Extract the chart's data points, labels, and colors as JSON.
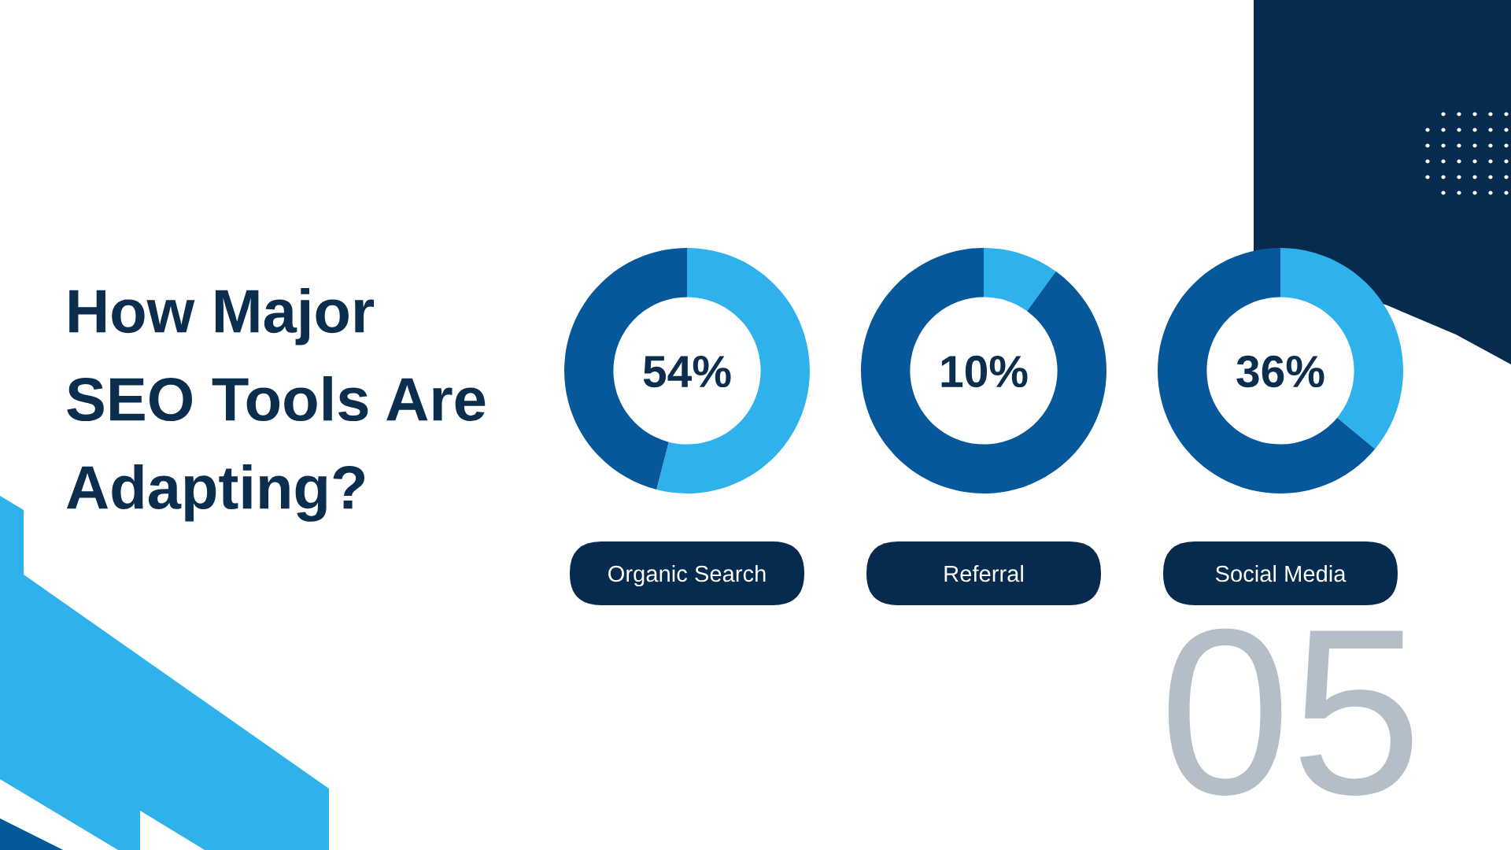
{
  "chart_data": [
    {
      "type": "other",
      "title": "How Major SEO Tools Are Adapting?",
      "annotations": [
        "05"
      ]
    },
    {
      "type": "donut",
      "xlabel": "Organic Search",
      "categories": [
        null,
        null
      ],
      "values": [
        54,
        46
      ],
      "colors": [
        "#2fb2eb",
        "#06589b"
      ],
      "annotations": [
        "54%"
      ]
    },
    {
      "type": "donut",
      "xlabel": "Referral",
      "categories": [
        null,
        null
      ],
      "values": [
        10,
        90
      ],
      "colors": [
        "#2fb2eb",
        "#06589b"
      ],
      "annotations": [
        "10%"
      ]
    },
    {
      "type": "donut",
      "xlabel": "Social Media",
      "categories": [
        null,
        null
      ],
      "values": [
        36,
        64
      ],
      "colors": [
        "#2fb2eb",
        "#06589b"
      ],
      "annotations": [
        "36%"
      ]
    }
  ]
}
